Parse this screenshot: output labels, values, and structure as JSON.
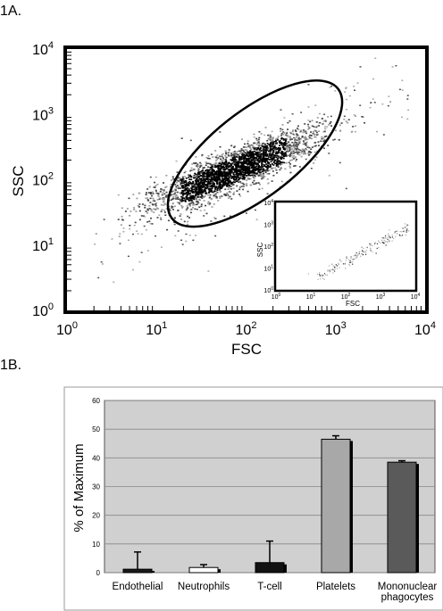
{
  "panels": {
    "a_label": "1A.",
    "b_label": "1B."
  },
  "chart_data": [
    {
      "type": "scatter",
      "scale": "log",
      "xlabel": "FSC",
      "ylabel": "SSC",
      "xlim": [
        1,
        10000
      ],
      "ylim": [
        1,
        10000
      ],
      "x_ticks": [
        "10^0",
        "10^1",
        "10^2",
        "10^3",
        "10^4"
      ],
      "y_ticks": [
        "10^0",
        "10^1",
        "10^2",
        "10^3",
        "10^4"
      ],
      "gate": {
        "shape": "ellipse",
        "center_log": [
          2.1,
          2.4
        ],
        "note": ""
      },
      "population": {
        "center_log": [
          1.85,
          2.15
        ],
        "spread_log": [
          0.45,
          0.3
        ],
        "correlation": 0.85
      },
      "inset": {
        "type": "scatter",
        "xlabel": "FSC",
        "ylabel": "SSC",
        "xlim": [
          1,
          10000
        ],
        "ylim": [
          1,
          10000
        ]
      }
    },
    {
      "type": "bar",
      "ylabel": "% of Maximum",
      "ylim": [
        0,
        60
      ],
      "y_ticks": [
        0,
        10,
        20,
        30,
        40,
        50,
        60
      ],
      "grid": true,
      "categories": [
        "Endothelial",
        "Neutrophils",
        "T-cell",
        "Platelets",
        "Mononuclear phagocytes"
      ],
      "category_lines": [
        [
          "Endothelial"
        ],
        [
          "Neutrophils"
        ],
        [
          "T-cell"
        ],
        [
          "Platelets"
        ],
        [
          "Mononuclear",
          "phagocytes"
        ]
      ],
      "values": [
        1.2,
        1.8,
        3.5,
        46.5,
        38.5
      ],
      "errors": [
        6,
        1,
        7.5,
        1.2,
        0.5
      ],
      "colors": [
        "#1a1a1a",
        "#ffffff",
        "#111111",
        "#a8a8a8",
        "#5a5a5a"
      ],
      "plot_bg": "#d0d0d0"
    }
  ]
}
